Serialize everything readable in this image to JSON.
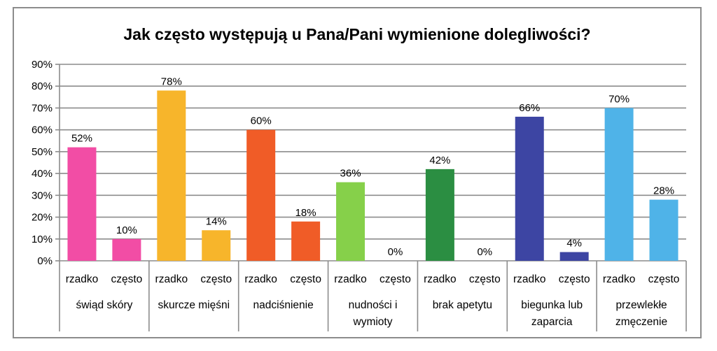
{
  "chart_data": {
    "type": "bar",
    "title": "Jak często występują u Pana/Pani wymienione dolegliwości?",
    "xlabel": "",
    "ylabel": "",
    "ylim": [
      0,
      90
    ],
    "ytick_step": 10,
    "ytick_suffix": "%",
    "grid": true,
    "legend": "none",
    "groups": [
      {
        "label_lines": [
          "świąd skóry"
        ],
        "bars": [
          {
            "label": "rzadko",
            "value": 52,
            "value_label": "52%"
          },
          {
            "label": "często",
            "value": 10,
            "value_label": "10%"
          }
        ],
        "color": "#f24da5"
      },
      {
        "label_lines": [
          "skurcze mięśni"
        ],
        "bars": [
          {
            "label": "rzadko",
            "value": 78,
            "value_label": "78%"
          },
          {
            "label": "często",
            "value": 14,
            "value_label": "14%"
          }
        ],
        "color": "#f7b52b"
      },
      {
        "label_lines": [
          "nadciśnienie"
        ],
        "bars": [
          {
            "label": "rzadko",
            "value": 60,
            "value_label": "60%"
          },
          {
            "label": "często",
            "value": 18,
            "value_label": "18%"
          }
        ],
        "color": "#f05c27"
      },
      {
        "label_lines": [
          "nudności i",
          "wymioty"
        ],
        "bars": [
          {
            "label": "rzadko",
            "value": 36,
            "value_label": "36%"
          },
          {
            "label": "często",
            "value": 0,
            "value_label": "0%"
          }
        ],
        "color": "#86d04a"
      },
      {
        "label_lines": [
          "brak apetytu"
        ],
        "bars": [
          {
            "label": "rzadko",
            "value": 42,
            "value_label": "42%"
          },
          {
            "label": "często",
            "value": 0,
            "value_label": "0%"
          }
        ],
        "color": "#2b8e42"
      },
      {
        "label_lines": [
          "biegunka lub",
          "zaparcia"
        ],
        "bars": [
          {
            "label": "rzadko",
            "value": 66,
            "value_label": "66%"
          },
          {
            "label": "często",
            "value": 4,
            "value_label": "4%"
          }
        ],
        "color": "#3d45a3"
      },
      {
        "label_lines": [
          "przewlekłe",
          "zmęczenie"
        ],
        "bars": [
          {
            "label": "rzadko",
            "value": 70,
            "value_label": "70%"
          },
          {
            "label": "często",
            "value": 28,
            "value_label": "28%"
          }
        ],
        "color": "#4fb3e8"
      }
    ]
  }
}
